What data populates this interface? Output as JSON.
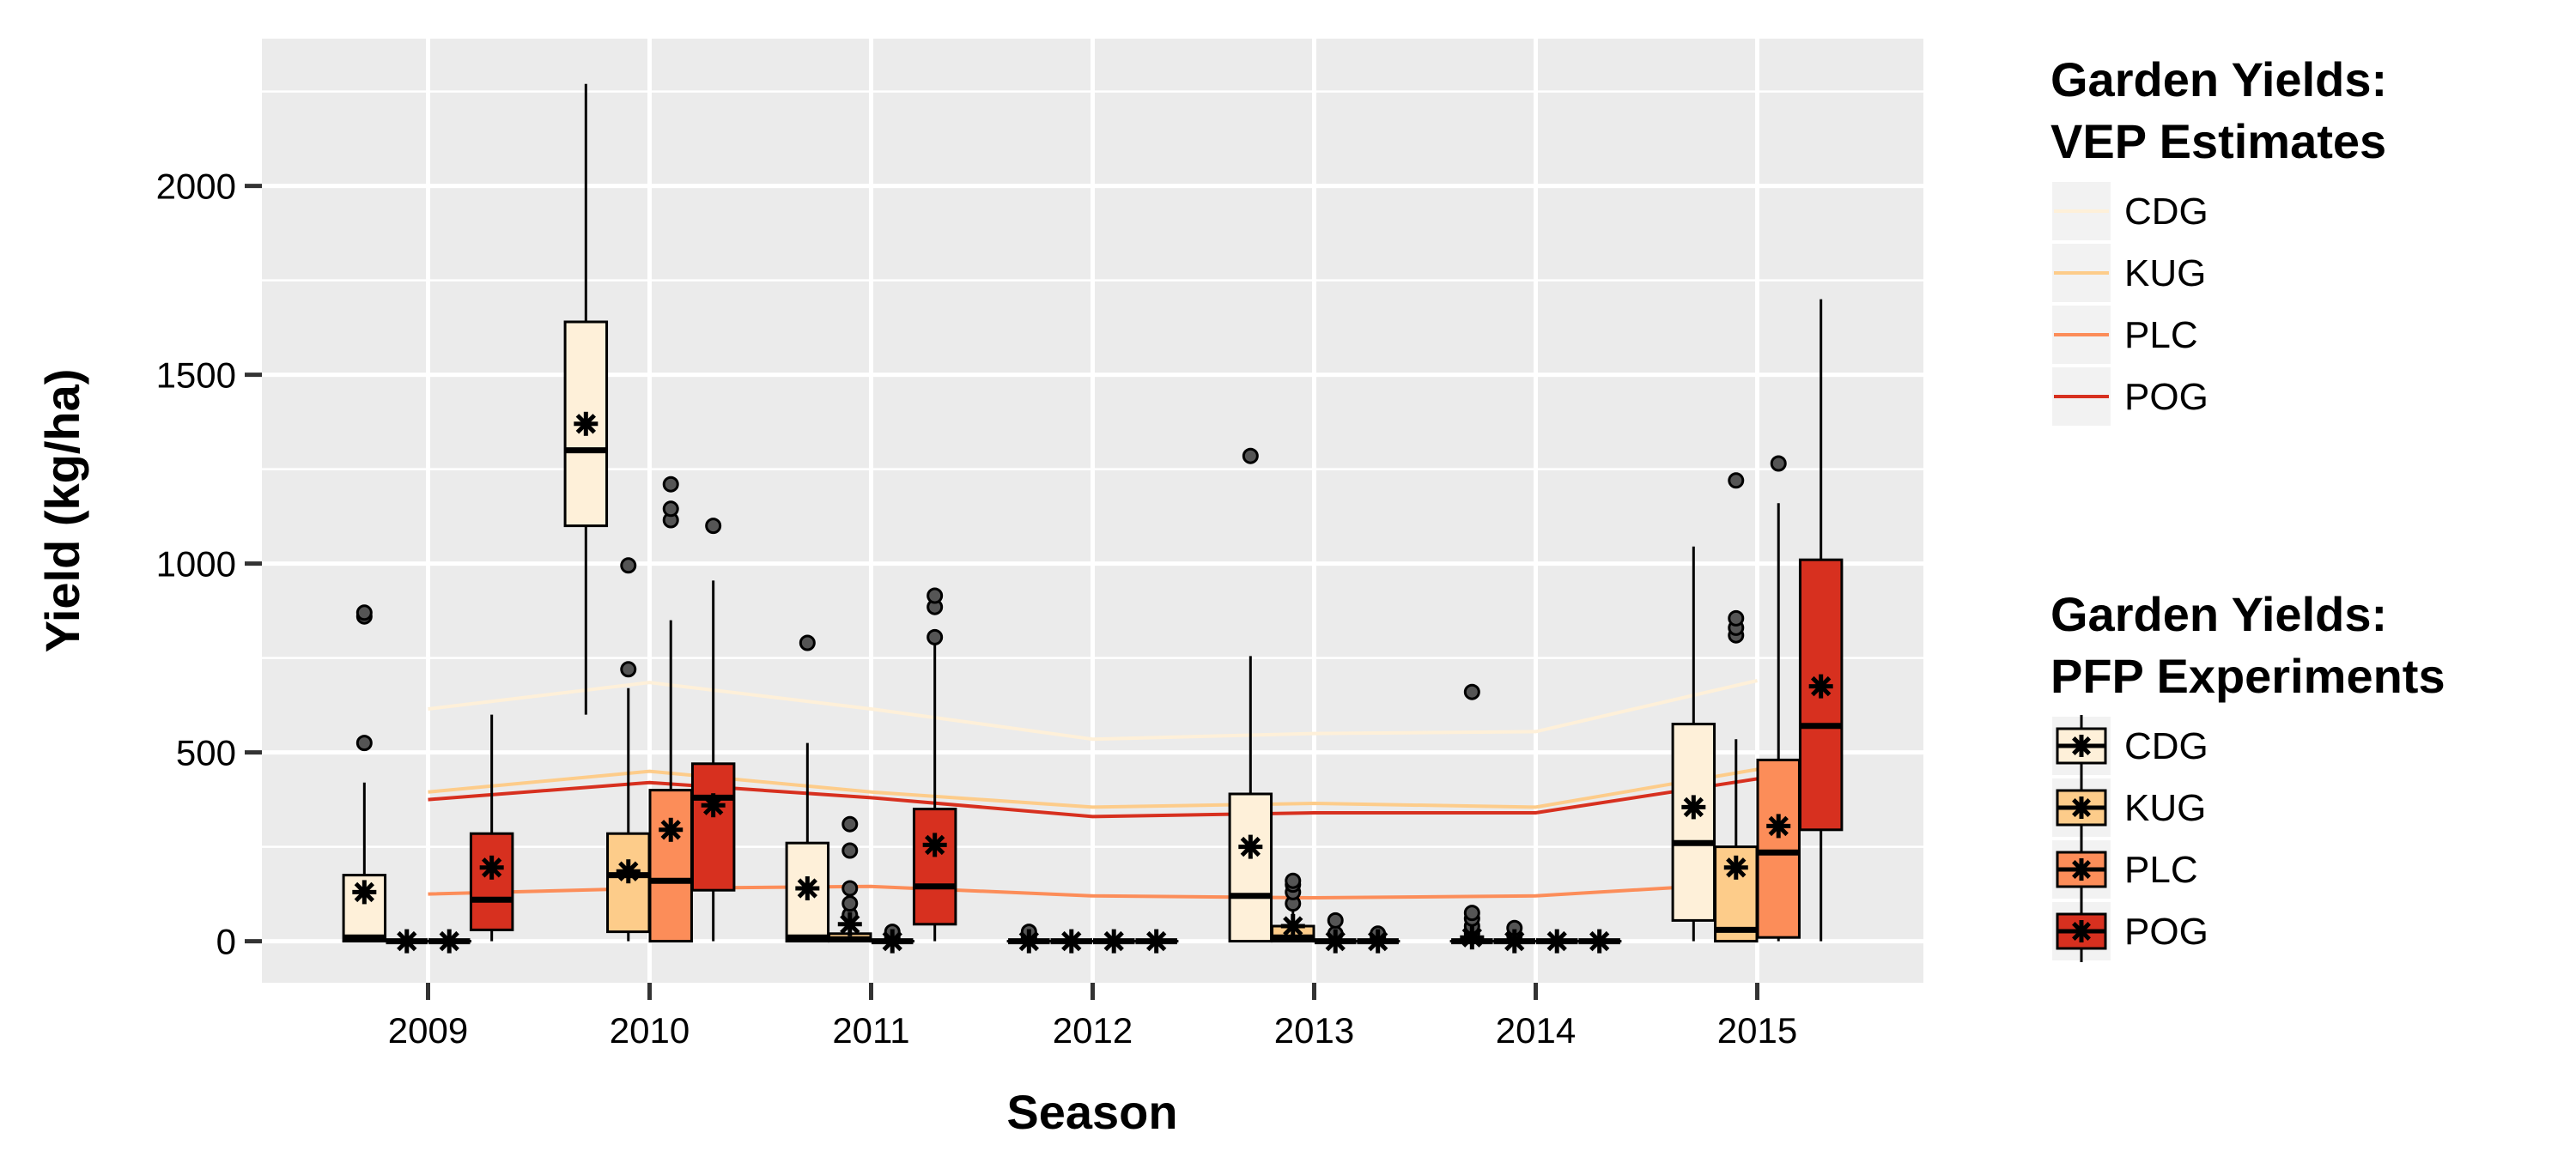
{
  "chart_data": {
    "type": "box",
    "xlabel": "Season",
    "ylabel": "Yield (kg/ha)",
    "categories": [
      "2009",
      "2010",
      "2011",
      "2012",
      "2013",
      "2014",
      "2015"
    ],
    "ylim": [
      -110,
      2390
    ],
    "yticks": [
      0,
      500,
      1000,
      1500,
      2000
    ],
    "grid": true,
    "colors": {
      "panel": "#EBEBEB",
      "grid": "#FFFFFF",
      "CDG": "#FEF0D9",
      "KUG": "#FDCC8A",
      "PLC": "#FC8D59",
      "POG": "#D7301F"
    },
    "legend_position": "right",
    "legend_lines": {
      "title_line1": "Garden Yields:",
      "title_line2": "VEP Estimates",
      "entries": [
        "CDG",
        "KUG",
        "PLC",
        "POG"
      ]
    },
    "legend_boxes": {
      "title_line1": "Garden Yields:",
      "title_line2": "PFP Experiments",
      "entries": [
        "CDG",
        "KUG",
        "PLC",
        "POG"
      ]
    },
    "line_series": [
      {
        "name": "CDG",
        "values": [
          615,
          685,
          615,
          535,
          550,
          555,
          690
        ]
      },
      {
        "name": "KUG",
        "values": [
          395,
          450,
          395,
          355,
          365,
          355,
          455
        ]
      },
      {
        "name": "PLC",
        "values": [
          125,
          140,
          145,
          120,
          115,
          120,
          155
        ]
      },
      {
        "name": "POG",
        "values": [
          375,
          420,
          380,
          330,
          340,
          340,
          430
        ]
      }
    ],
    "box_series": [
      {
        "name": "CDG",
        "boxes": [
          {
            "x": "2009",
            "q1": 0,
            "median": 10,
            "q3": 175,
            "lower": 0,
            "upper": 420,
            "mean": 130,
            "outliers": [
              525,
              860,
              870
            ]
          },
          {
            "x": "2010",
            "q1": 1100,
            "median": 1300,
            "q3": 1640,
            "lower": 600,
            "upper": 2270,
            "mean": 1370,
            "outliers": []
          },
          {
            "x": "2011",
            "q1": 0,
            "median": 10,
            "q3": 260,
            "lower": 0,
            "upper": 525,
            "mean": 140,
            "outliers": [
              790
            ]
          },
          {
            "x": "2012",
            "q1": 0,
            "median": 0,
            "q3": 0,
            "lower": 0,
            "upper": 0,
            "mean": 0,
            "outliers": [
              10,
              25
            ]
          },
          {
            "x": "2013",
            "q1": 0,
            "median": 120,
            "q3": 390,
            "lower": 0,
            "upper": 755,
            "mean": 250,
            "outliers": [
              1285
            ]
          },
          {
            "x": "2014",
            "q1": 0,
            "median": 0,
            "q3": 0,
            "lower": 0,
            "upper": 0,
            "mean": 10,
            "outliers": [
              20,
              40,
              60,
              75,
              660
            ]
          },
          {
            "x": "2015",
            "q1": 55,
            "median": 260,
            "q3": 575,
            "lower": 0,
            "upper": 1045,
            "mean": 355,
            "outliers": []
          }
        ]
      },
      {
        "name": "KUG",
        "boxes": [
          {
            "x": "2009",
            "q1": 0,
            "median": 0,
            "q3": 0,
            "lower": 0,
            "upper": 0,
            "mean": 0,
            "outliers": []
          },
          {
            "x": "2010",
            "q1": 25,
            "median": 175,
            "q3": 285,
            "lower": 0,
            "upper": 670,
            "mean": 185,
            "outliers": [
              720,
              995
            ]
          },
          {
            "x": "2011",
            "q1": 0,
            "median": 5,
            "q3": 20,
            "lower": 0,
            "upper": 50,
            "mean": 45,
            "outliers": [
              70,
              100,
              140,
              240,
              310
            ]
          },
          {
            "x": "2012",
            "q1": 0,
            "median": 0,
            "q3": 0,
            "lower": 0,
            "upper": 0,
            "mean": 0,
            "outliers": []
          },
          {
            "x": "2013",
            "q1": 0,
            "median": 10,
            "q3": 40,
            "lower": 0,
            "upper": 80,
            "mean": 40,
            "outliers": [
              100,
              130,
              150,
              160
            ]
          },
          {
            "x": "2014",
            "q1": 0,
            "median": 0,
            "q3": 0,
            "lower": 0,
            "upper": 0,
            "mean": 0,
            "outliers": [
              15,
              35
            ]
          },
          {
            "x": "2015",
            "q1": 0,
            "median": 30,
            "q3": 250,
            "lower": 0,
            "upper": 535,
            "mean": 195,
            "outliers": [
              810,
              830,
              855,
              1220
            ]
          }
        ]
      },
      {
        "name": "PLC",
        "boxes": [
          {
            "x": "2009",
            "q1": 0,
            "median": 0,
            "q3": 0,
            "lower": 0,
            "upper": 0,
            "mean": 0,
            "outliers": []
          },
          {
            "x": "2010",
            "q1": 0,
            "median": 160,
            "q3": 400,
            "lower": 0,
            "upper": 850,
            "mean": 295,
            "outliers": [
              1115,
              1145,
              1210
            ]
          },
          {
            "x": "2011",
            "q1": 0,
            "median": 0,
            "q3": 0,
            "lower": 0,
            "upper": 0,
            "mean": 0,
            "outliers": [
              10,
              25
            ]
          },
          {
            "x": "2012",
            "q1": 0,
            "median": 0,
            "q3": 0,
            "lower": 0,
            "upper": 0,
            "mean": 0,
            "outliers": []
          },
          {
            "x": "2013",
            "q1": 0,
            "median": 0,
            "q3": 0,
            "lower": 0,
            "upper": 0,
            "mean": 0,
            "outliers": [
              20,
              55
            ]
          },
          {
            "x": "2014",
            "q1": 0,
            "median": 0,
            "q3": 0,
            "lower": 0,
            "upper": 0,
            "mean": 0,
            "outliers": []
          },
          {
            "x": "2015",
            "q1": 10,
            "median": 235,
            "q3": 480,
            "lower": 0,
            "upper": 1160,
            "mean": 305,
            "outliers": [
              1265
            ]
          }
        ]
      },
      {
        "name": "POG",
        "boxes": [
          {
            "x": "2009",
            "q1": 30,
            "median": 110,
            "q3": 285,
            "lower": 0,
            "upper": 600,
            "mean": 195,
            "outliers": []
          },
          {
            "x": "2010",
            "q1": 135,
            "median": 380,
            "q3": 470,
            "lower": 0,
            "upper": 955,
            "mean": 360,
            "outliers": [
              1100
            ]
          },
          {
            "x": "2011",
            "q1": 45,
            "median": 145,
            "q3": 350,
            "lower": 0,
            "upper": 790,
            "mean": 255,
            "outliers": [
              805,
              885,
              915
            ]
          },
          {
            "x": "2012",
            "q1": 0,
            "median": 0,
            "q3": 0,
            "lower": 0,
            "upper": 0,
            "mean": 0,
            "outliers": []
          },
          {
            "x": "2013",
            "q1": 0,
            "median": 0,
            "q3": 0,
            "lower": 0,
            "upper": 0,
            "mean": 0,
            "outliers": [
              10,
              20
            ]
          },
          {
            "x": "2014",
            "q1": 0,
            "median": 0,
            "q3": 0,
            "lower": 0,
            "upper": 0,
            "mean": 0,
            "outliers": []
          },
          {
            "x": "2015",
            "q1": 295,
            "median": 570,
            "q3": 1010,
            "lower": 0,
            "upper": 1700,
            "mean": 675,
            "outliers": []
          }
        ]
      }
    ]
  }
}
